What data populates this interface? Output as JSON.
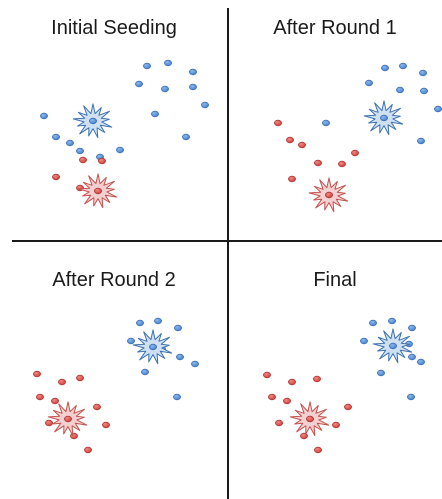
{
  "colors": {
    "blue_point": "#3f7fd1",
    "blue_point_edge": "#2c5fa5",
    "red_point": "#d23a35",
    "red_point_edge": "#9d2622",
    "blue_seed_fill": "#cfe0f3",
    "blue_seed_edge": "#3f73b3",
    "red_seed_fill": "#f5d0d0",
    "red_seed_edge": "#c25450",
    "divider": "#1a1a1a"
  },
  "panels": [
    {
      "title": "Initial Seeding"
    },
    {
      "title": "After Round 1"
    },
    {
      "title": "After Round 2"
    },
    {
      "title": "Final"
    }
  ]
}
